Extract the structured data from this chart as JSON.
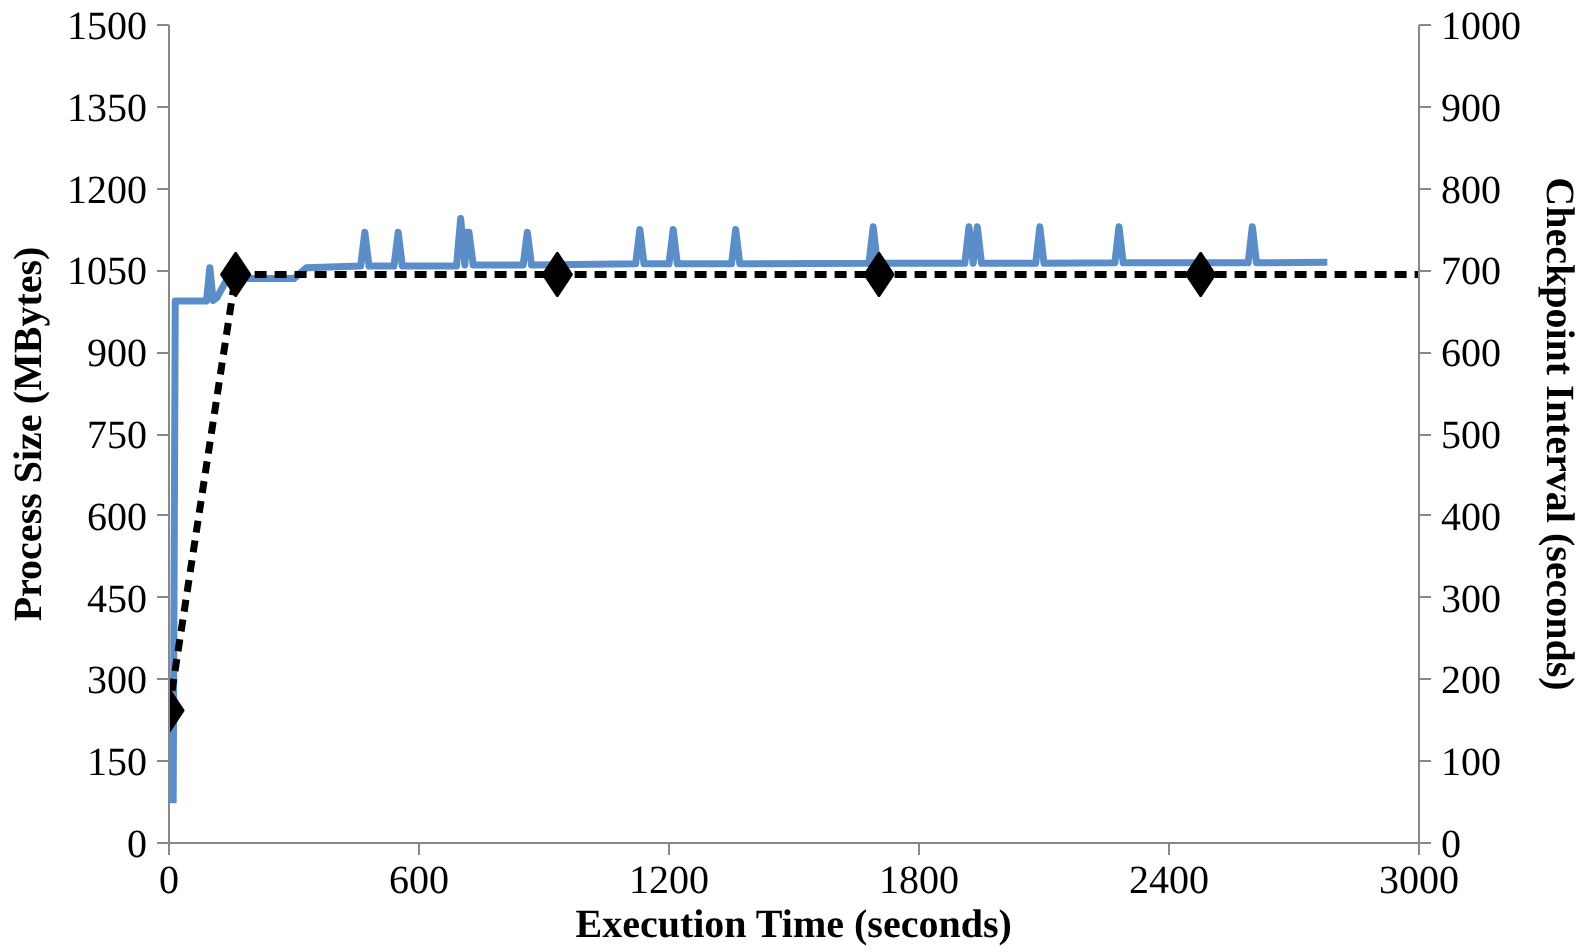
{
  "chart_data": {
    "type": "line",
    "xlabel": "Execution Time (seconds)",
    "ylabel": "Process Size (MBytes)",
    "y2label": "Checkpoint Interval (seconds)",
    "xlim": [
      0,
      3000
    ],
    "xticks": [
      0,
      600,
      1200,
      1800,
      2400,
      3000
    ],
    "ylim": [
      0,
      1500
    ],
    "yticks": [
      0,
      150,
      300,
      450,
      600,
      750,
      900,
      1050,
      1200,
      1350,
      1500
    ],
    "y2lim": [
      0,
      1000
    ],
    "y2ticks": [
      0,
      100,
      200,
      300,
      400,
      500,
      600,
      700,
      800,
      900,
      1000
    ],
    "grid": false,
    "series": [
      {
        "color": "#5b8ec8",
        "line_style": "solid",
        "marker": "none",
        "x": [
          10,
          15,
          20,
          80,
          90,
          98,
          106,
          115,
          140,
          170,
          300,
          330,
          460,
          470,
          480,
          540,
          550,
          560,
          690,
          700,
          710,
          715,
          720,
          730,
          850,
          860,
          870,
          1120,
          1130,
          1140,
          1200,
          1210,
          1220,
          1350,
          1360,
          1370,
          1680,
          1690,
          1700,
          1910,
          1920,
          1930,
          1940,
          1950,
          2080,
          2090,
          2100,
          2270,
          2280,
          2290,
          2590,
          2600,
          2610,
          2780
        ],
        "values": [
          73,
          994,
          994,
          994,
          994,
          1055,
          995,
          1000,
          1035,
          1035,
          1035,
          1055,
          1058,
          1120,
          1058,
          1058,
          1120,
          1058,
          1058,
          1145,
          1060,
          1120,
          1120,
          1060,
          1060,
          1120,
          1060,
          1062,
          1125,
          1062,
          1062,
          1125,
          1062,
          1062,
          1125,
          1062,
          1063,
          1130,
          1063,
          1063,
          1130,
          1063,
          1130,
          1063,
          1063,
          1130,
          1063,
          1064,
          1130,
          1064,
          1064,
          1130,
          1064,
          1065
        ]
      },
      {
        "type": "line",
        "axis": "y2",
        "color": "#000000",
        "line_style": "dashed",
        "marker": "none",
        "x": [
          0,
          160,
          932,
          1704,
          2476,
          3000
        ],
        "values": [
          162,
          695,
          695,
          695,
          695,
          695
        ]
      },
      {
        "type": "scatter",
        "axis": "y2",
        "color": "#000000",
        "marker": "diamond",
        "x": [
          0,
          160,
          932,
          1704,
          2476
        ],
        "values": [
          162,
          695,
          695,
          695,
          695
        ]
      }
    ]
  }
}
